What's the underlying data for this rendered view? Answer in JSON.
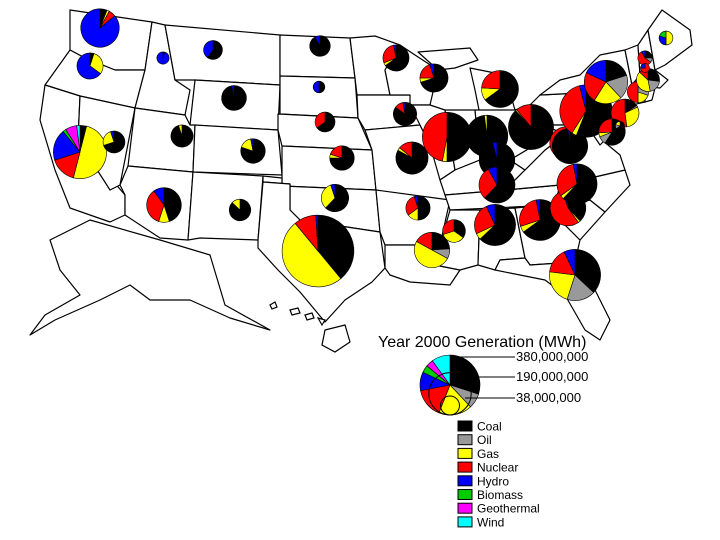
{
  "legend": {
    "title": "Year 2000 Generation (MWh)",
    "scale_labels": [
      "380,000,000",
      "190,000,000",
      "38,000,000"
    ],
    "scale_values": [
      380000000,
      190000000,
      38000000
    ],
    "fuels": [
      {
        "key": "coal",
        "label": "Coal",
        "color": "#000000"
      },
      {
        "key": "oil",
        "label": "Oil",
        "color": "#999999"
      },
      {
        "key": "gas",
        "label": "Gas",
        "color": "#ffff00"
      },
      {
        "key": "nuclear",
        "label": "Nuclear",
        "color": "#ff0000"
      },
      {
        "key": "hydro",
        "label": "Hydro",
        "color": "#0000ff"
      },
      {
        "key": "biomass",
        "label": "Biomass",
        "color": "#00cc00"
      },
      {
        "key": "geothermal",
        "label": "Geothermal",
        "color": "#ff00ff"
      },
      {
        "key": "wind",
        "label": "Wind",
        "color": "#00ffff"
      }
    ],
    "legend_pie_mix": {
      "coal": 0.3,
      "oil": 0.08,
      "gas": 0.18,
      "nuclear": 0.16,
      "hydro": 0.1,
      "biomass": 0.04,
      "geothermal": 0.04,
      "wind": 0.1
    }
  },
  "pies": [
    {
      "state": "WA",
      "generation": 108000000,
      "mix": {
        "coal": 0.06,
        "gas": 0.02,
        "nuclear": 0.06,
        "hydro": 0.86
      }
    },
    {
      "state": "OR",
      "generation": 50000000,
      "mix": {
        "coal": 0.05,
        "gas": 0.3,
        "hydro": 0.65
      }
    },
    {
      "state": "ID",
      "generation": 11000000,
      "mix": {
        "hydro": 0.95,
        "coal": 0.05
      }
    },
    {
      "state": "MT",
      "generation": 26000000,
      "mix": {
        "coal": 0.6,
        "hydro": 0.4
      }
    },
    {
      "state": "ND",
      "generation": 31000000,
      "mix": {
        "coal": 0.92,
        "hydro": 0.08
      }
    },
    {
      "state": "SD",
      "generation": 10000000,
      "mix": {
        "coal": 0.5,
        "hydro": 0.5
      }
    },
    {
      "state": "WY",
      "generation": 45000000,
      "mix": {
        "coal": 0.97,
        "hydro": 0.03
      }
    },
    {
      "state": "MN",
      "generation": 50000000,
      "mix": {
        "coal": 0.65,
        "nuclear": 0.28,
        "gas": 0.04,
        "hydro": 0.03
      }
    },
    {
      "state": "WI",
      "generation": 58000000,
      "mix": {
        "coal": 0.7,
        "nuclear": 0.2,
        "gas": 0.05,
        "hydro": 0.05
      }
    },
    {
      "state": "MI",
      "generation": 100000000,
      "mix": {
        "coal": 0.65,
        "nuclear": 0.24,
        "gas": 0.11
      }
    },
    {
      "state": "IA",
      "generation": 40000000,
      "mix": {
        "coal": 0.85,
        "nuclear": 0.12,
        "hydro": 0.03
      }
    },
    {
      "state": "NE",
      "generation": 29000000,
      "mix": {
        "coal": 0.65,
        "nuclear": 0.35
      }
    },
    {
      "state": "CA",
      "generation": 208000000,
      "mix": {
        "gas": 0.5,
        "nuclear": 0.16,
        "hydro": 0.19,
        "geothermal": 0.07,
        "coal": 0.04,
        "biomass": 0.02,
        "wind": 0.02
      }
    },
    {
      "state": "NV",
      "generation": 35000000,
      "mix": {
        "coal": 0.7,
        "gas": 0.25,
        "hydro": 0.05
      }
    },
    {
      "state": "UT",
      "generation": 36000000,
      "mix": {
        "coal": 0.95,
        "gas": 0.05
      }
    },
    {
      "state": "CO",
      "generation": 44000000,
      "mix": {
        "coal": 0.8,
        "gas": 0.17,
        "hydro": 0.03
      }
    },
    {
      "state": "KS",
      "generation": 44000000,
      "mix": {
        "coal": 0.75,
        "nuclear": 0.2,
        "gas": 0.05
      }
    },
    {
      "state": "AZ",
      "generation": 88000000,
      "mix": {
        "coal": 0.45,
        "nuclear": 0.35,
        "gas": 0.1,
        "hydro": 0.1
      }
    },
    {
      "state": "NM",
      "generation": 34000000,
      "mix": {
        "coal": 0.87,
        "gas": 0.13
      }
    },
    {
      "state": "OK",
      "generation": 55000000,
      "mix": {
        "coal": 0.62,
        "gas": 0.33,
        "hydro": 0.05
      }
    },
    {
      "state": "TX",
      "generation": 377000000,
      "mix": {
        "gas": 0.5,
        "coal": 0.39,
        "nuclear": 0.1,
        "hydro": 0.01
      }
    },
    {
      "state": "MO",
      "generation": 76000000,
      "mix": {
        "coal": 0.83,
        "nuclear": 0.14,
        "gas": 0.03
      }
    },
    {
      "state": "AR",
      "generation": 43000000,
      "mix": {
        "coal": 0.5,
        "nuclear": 0.3,
        "gas": 0.15,
        "hydro": 0.05
      }
    },
    {
      "state": "LA",
      "generation": 92000000,
      "mix": {
        "gas": 0.5,
        "coal": 0.24,
        "nuclear": 0.17,
        "oil": 0.09
      }
    },
    {
      "state": "MS",
      "generation": 38000000,
      "mix": {
        "coal": 0.35,
        "nuclear": 0.3,
        "gas": 0.35
      }
    },
    {
      "state": "IL",
      "generation": 178000000,
      "mix": {
        "coal": 0.5,
        "nuclear": 0.47,
        "gas": 0.03
      }
    },
    {
      "state": "IN",
      "generation": 127000000,
      "mix": {
        "coal": 0.98,
        "gas": 0.02
      }
    },
    {
      "state": "OH",
      "generation": 149000000,
      "mix": {
        "coal": 0.88,
        "nuclear": 0.11,
        "gas": 0.01
      }
    },
    {
      "state": "KY",
      "generation": 93000000,
      "mix": {
        "coal": 0.96,
        "hydro": 0.04
      }
    },
    {
      "state": "TN",
      "generation": 95000000,
      "mix": {
        "coal": 0.62,
        "nuclear": 0.3,
        "hydro": 0.08
      }
    },
    {
      "state": "AL",
      "generation": 124000000,
      "mix": {
        "coal": 0.63,
        "nuclear": 0.25,
        "gas": 0.05,
        "hydro": 0.07
      }
    },
    {
      "state": "GA",
      "generation": 123000000,
      "mix": {
        "coal": 0.65,
        "nuclear": 0.27,
        "gas": 0.05,
        "hydro": 0.03
      }
    },
    {
      "state": "FL",
      "generation": 192000000,
      "mix": {
        "coal": 0.37,
        "gas": 0.22,
        "oil": 0.18,
        "nuclear": 0.16,
        "hydro": 0.07
      }
    },
    {
      "state": "SC",
      "generation": 93000000,
      "mix": {
        "coal": 0.38,
        "nuclear": 0.55,
        "gas": 0.02,
        "hydro": 0.05
      }
    },
    {
      "state": "NC",
      "generation": 118000000,
      "mix": {
        "coal": 0.62,
        "nuclear": 0.32,
        "gas": 0.03,
        "hydro": 0.03
      }
    },
    {
      "state": "VA",
      "generation": 77000000,
      "mix": {
        "coal": 0.5,
        "nuclear": 0.36,
        "gas": 0.09,
        "oil": 0.05
      }
    },
    {
      "state": "WV",
      "generation": 92000000,
      "mix": {
        "coal": 0.98,
        "hydro": 0.02
      }
    },
    {
      "state": "PA",
      "generation": 201000000,
      "mix": {
        "coal": 0.56,
        "nuclear": 0.37,
        "gas": 0.03,
        "hydro": 0.04
      }
    },
    {
      "state": "NY",
      "generation": 138000000,
      "mix": {
        "gas": 0.21,
        "oil": 0.18,
        "nuclear": 0.23,
        "hydro": 0.18,
        "coal": 0.2
      }
    },
    {
      "state": "NJ",
      "generation": 57000000,
      "mix": {
        "nuclear": 0.52,
        "gas": 0.3,
        "coal": 0.16,
        "oil": 0.02
      }
    },
    {
      "state": "MD",
      "generation": 51000000,
      "mix": {
        "coal": 0.59,
        "nuclear": 0.26,
        "oil": 0.1,
        "gas": 0.05
      }
    },
    {
      "state": "DE",
      "generation": 6000000,
      "mix": {
        "coal": 0.65,
        "gas": 0.2,
        "oil": 0.15
      }
    },
    {
      "state": "CT",
      "generation": 33000000,
      "mix": {
        "nuclear": 0.5,
        "oil": 0.3,
        "gas": 0.2
      }
    },
    {
      "state": "MA",
      "generation": 39000000,
      "mix": {
        "gas": 0.4,
        "coal": 0.27,
        "oil": 0.2,
        "nuclear": 0.13
      }
    },
    {
      "state": "NH",
      "generation": 15000000,
      "mix": {
        "nuclear": 0.57,
        "coal": 0.25,
        "oil": 0.1,
        "hydro": 0.08
      }
    },
    {
      "state": "VT",
      "generation": 6000000,
      "mix": {
        "nuclear": 0.75,
        "hydro": 0.25
      }
    },
    {
      "state": "ME",
      "generation": 14000000,
      "mix": {
        "gas": 0.5,
        "hydro": 0.3,
        "biomass": 0.2
      }
    }
  ]
}
